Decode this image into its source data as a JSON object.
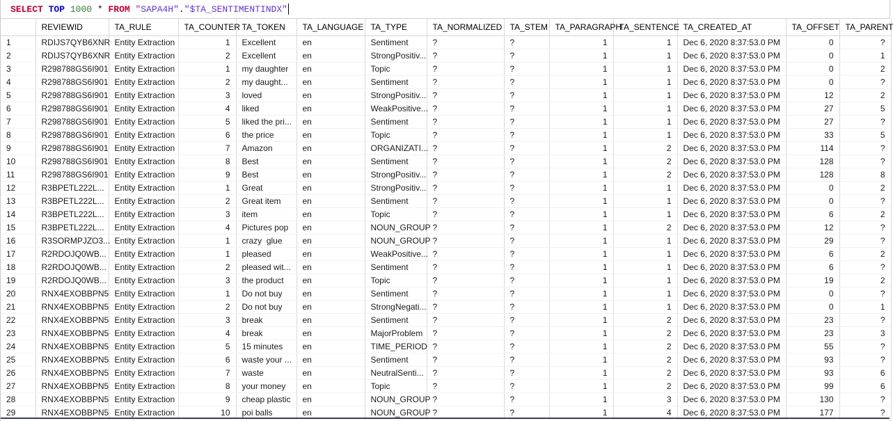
{
  "sql_editor": {
    "syntax_colors": {
      "keyword": "#bb0033",
      "keyword2": "#0000cc",
      "number": "#2e7d32",
      "string": "#6633cc",
      "plain": "#000000"
    },
    "query_tokens": [
      {
        "text": "SELECT",
        "type": "keyword"
      },
      {
        "text": " ",
        "type": "plain"
      },
      {
        "text": "TOP",
        "type": "keyword2"
      },
      {
        "text": " ",
        "type": "plain"
      },
      {
        "text": "1000",
        "type": "number"
      },
      {
        "text": " * ",
        "type": "plain"
      },
      {
        "text": "FROM",
        "type": "keyword"
      },
      {
        "text": " ",
        "type": "plain"
      },
      {
        "text": "\"SAPA4H\"",
        "type": "string"
      },
      {
        "text": ".",
        "type": "plain"
      },
      {
        "text": "\"$TA_SENTIMENTINDX\"",
        "type": "string"
      }
    ]
  },
  "grid": {
    "columns": [
      {
        "id": "rownum",
        "label": "",
        "width": 50,
        "align": "left"
      },
      {
        "id": "reviewid",
        "label": "REVIEWID",
        "width": 105,
        "align": "left"
      },
      {
        "id": "ta-rule",
        "label": "TA_RULE",
        "width": 100,
        "align": "left"
      },
      {
        "id": "ta-counter",
        "label": "TA_COUNTER",
        "width": 83,
        "align": "right"
      },
      {
        "id": "ta-token",
        "label": "TA_TOKEN",
        "width": 87,
        "align": "left"
      },
      {
        "id": "ta-language",
        "label": "TA_LANGUAGE",
        "width": 98,
        "align": "left"
      },
      {
        "id": "ta-type",
        "label": "TA_TYPE",
        "width": 89,
        "align": "left"
      },
      {
        "id": "ta-normalized",
        "label": "TA_NORMALIZED",
        "width": 111,
        "align": "left"
      },
      {
        "id": "ta-stem",
        "label": "TA_STEM",
        "width": 65,
        "align": "left"
      },
      {
        "id": "ta-paragraph",
        "label": "TA_PARAGRAPH",
        "width": 92,
        "align": "right"
      },
      {
        "id": "ta-sentence",
        "label": "TA_SENTENCE",
        "width": 92,
        "align": "right"
      },
      {
        "id": "ta-created-at",
        "label": "TA_CREATED_AT",
        "width": 156,
        "align": "left"
      },
      {
        "id": "ta-offset",
        "label": "TA_OFFSET",
        "width": 77,
        "align": "right"
      },
      {
        "id": "ta-parent",
        "label": "TA_PARENT",
        "width": 74,
        "align": "right"
      }
    ],
    "rows": [
      [
        "1",
        "RDIJS7QYB6XNR",
        "Entity Extraction",
        "1",
        "Excellent",
        "en",
        "Sentiment",
        "?",
        "?",
        "1",
        "1",
        "Dec 6, 2020 8:37:53.0 PM",
        "0",
        "?"
      ],
      [
        "2",
        "RDIJS7QYB6XNR",
        "Entity Extraction",
        "2",
        "Excellent",
        "en",
        "StrongPositiv...",
        "?",
        "?",
        "1",
        "1",
        "Dec 6, 2020 8:37:53.0 PM",
        "0",
        "1"
      ],
      [
        "3",
        "R298788GS6I901",
        "Entity Extraction",
        "1",
        "my daughter",
        "en",
        "Topic",
        "?",
        "?",
        "1",
        "1",
        "Dec 6, 2020 8:37:53.0 PM",
        "0",
        "2"
      ],
      [
        "4",
        "R298788GS6I901",
        "Entity Extraction",
        "2",
        "my daught...",
        "en",
        "Sentiment",
        "?",
        "?",
        "1",
        "1",
        "Dec 6, 2020 8:37:53.0 PM",
        "0",
        "?"
      ],
      [
        "5",
        "R298788GS6I901",
        "Entity Extraction",
        "3",
        "loved",
        "en",
        "StrongPositiv...",
        "?",
        "?",
        "1",
        "1",
        "Dec 6, 2020 8:37:53.0 PM",
        "12",
        "2"
      ],
      [
        "6",
        "R298788GS6I901",
        "Entity Extraction",
        "4",
        "liked",
        "en",
        "WeakPositive...",
        "?",
        "?",
        "1",
        "1",
        "Dec 6, 2020 8:37:53.0 PM",
        "27",
        "5"
      ],
      [
        "7",
        "R298788GS6I901",
        "Entity Extraction",
        "5",
        "liked the pri...",
        "en",
        "Sentiment",
        "?",
        "?",
        "1",
        "1",
        "Dec 6, 2020 8:37:53.0 PM",
        "27",
        "?"
      ],
      [
        "8",
        "R298788GS6I901",
        "Entity Extraction",
        "6",
        "the price",
        "en",
        "Topic",
        "?",
        "?",
        "1",
        "1",
        "Dec 6, 2020 8:37:53.0 PM",
        "33",
        "5"
      ],
      [
        "9",
        "R298788GS6I901",
        "Entity Extraction",
        "7",
        "Amazon",
        "en",
        "ORGANIZATI...",
        "?",
        "?",
        "1",
        "2",
        "Dec 6, 2020 8:37:53.0 PM",
        "114",
        "?"
      ],
      [
        "10",
        "R298788GS6I901",
        "Entity Extraction",
        "8",
        "Best",
        "en",
        "Sentiment",
        "?",
        "?",
        "1",
        "2",
        "Dec 6, 2020 8:37:53.0 PM",
        "128",
        "?"
      ],
      [
        "11",
        "R298788GS6I901",
        "Entity Extraction",
        "9",
        "Best",
        "en",
        "StrongPositiv...",
        "?",
        "?",
        "1",
        "2",
        "Dec 6, 2020 8:37:53.0 PM",
        "128",
        "8"
      ],
      [
        "12",
        "R3BPETL222L...",
        "Entity Extraction",
        "1",
        "Great",
        "en",
        "StrongPositiv...",
        "?",
        "?",
        "1",
        "1",
        "Dec 6, 2020 8:37:53.0 PM",
        "0",
        "2"
      ],
      [
        "13",
        "R3BPETL222L...",
        "Entity Extraction",
        "2",
        "Great item",
        "en",
        "Sentiment",
        "?",
        "?",
        "1",
        "1",
        "Dec 6, 2020 8:37:53.0 PM",
        "0",
        "?"
      ],
      [
        "14",
        "R3BPETL222L...",
        "Entity Extraction",
        "3",
        "item",
        "en",
        "Topic",
        "?",
        "?",
        "1",
        "1",
        "Dec 6, 2020 8:37:53.0 PM",
        "6",
        "2"
      ],
      [
        "15",
        "R3BPETL222L...",
        "Entity Extraction",
        "4",
        "Pictures pop",
        "en",
        "NOUN_GROUP",
        "?",
        "?",
        "1",
        "2",
        "Dec 6, 2020 8:37:53.0 PM",
        "12",
        "?"
      ],
      [
        "16",
        "R3SORMPJZO3...",
        "Entity Extraction",
        "1",
        "crazy  glue",
        "en",
        "NOUN_GROUP",
        "?",
        "?",
        "1",
        "1",
        "Dec 6, 2020 8:37:53.0 PM",
        "29",
        "?"
      ],
      [
        "17",
        "R2RDOJQ0WB...",
        "Entity Extraction",
        "1",
        "pleased",
        "en",
        "WeakPositive...",
        "?",
        "?",
        "1",
        "1",
        "Dec 6, 2020 8:37:53.0 PM",
        "6",
        "2"
      ],
      [
        "18",
        "R2RDOJQ0WB...",
        "Entity Extraction",
        "2",
        "pleased wit...",
        "en",
        "Sentiment",
        "?",
        "?",
        "1",
        "1",
        "Dec 6, 2020 8:37:53.0 PM",
        "6",
        "?"
      ],
      [
        "19",
        "R2RDOJQ0WB...",
        "Entity Extraction",
        "3",
        "the product",
        "en",
        "Topic",
        "?",
        "?",
        "1",
        "1",
        "Dec 6, 2020 8:37:53.0 PM",
        "19",
        "2"
      ],
      [
        "20",
        "RNX4EXOBBPN5",
        "Entity Extraction",
        "1",
        "Do not buy",
        "en",
        "Sentiment",
        "?",
        "?",
        "1",
        "1",
        "Dec 6, 2020 8:37:53.0 PM",
        "0",
        "?"
      ],
      [
        "21",
        "RNX4EXOBBPN5",
        "Entity Extraction",
        "2",
        "Do not buy",
        "en",
        "StrongNegati...",
        "?",
        "?",
        "1",
        "1",
        "Dec 6, 2020 8:37:53.0 PM",
        "0",
        "1"
      ],
      [
        "22",
        "RNX4EXOBBPN5",
        "Entity Extraction",
        "3",
        "break",
        "en",
        "Sentiment",
        "?",
        "?",
        "1",
        "2",
        "Dec 6, 2020 8:37:53.0 PM",
        "23",
        "?"
      ],
      [
        "23",
        "RNX4EXOBBPN5",
        "Entity Extraction",
        "4",
        "break",
        "en",
        "MajorProblem",
        "?",
        "?",
        "1",
        "2",
        "Dec 6, 2020 8:37:53.0 PM",
        "23",
        "3"
      ],
      [
        "24",
        "RNX4EXOBBPN5",
        "Entity Extraction",
        "5",
        "15 minutes",
        "en",
        "TIME_PERIOD",
        "?",
        "?",
        "1",
        "2",
        "Dec 6, 2020 8:37:53.0 PM",
        "55",
        "?"
      ],
      [
        "25",
        "RNX4EXOBBPN5",
        "Entity Extraction",
        "6",
        "waste your ...",
        "en",
        "Sentiment",
        "?",
        "?",
        "1",
        "2",
        "Dec 6, 2020 8:37:53.0 PM",
        "93",
        "?"
      ],
      [
        "26",
        "RNX4EXOBBPN5",
        "Entity Extraction",
        "7",
        "waste",
        "en",
        "NeutralSenti...",
        "?",
        "?",
        "1",
        "2",
        "Dec 6, 2020 8:37:53.0 PM",
        "93",
        "6"
      ],
      [
        "27",
        "RNX4EXOBBPN5",
        "Entity Extraction",
        "8",
        "your money",
        "en",
        "Topic",
        "?",
        "?",
        "1",
        "2",
        "Dec 6, 2020 8:37:53.0 PM",
        "99",
        "6"
      ],
      [
        "28",
        "RNX4EXOBBPN5",
        "Entity Extraction",
        "9",
        "cheap plastic",
        "en",
        "NOUN_GROUP",
        "?",
        "?",
        "1",
        "3",
        "Dec 6, 2020 8:37:53.0 PM",
        "130",
        "?"
      ],
      [
        "29",
        "RNX4EXOBBPN5",
        "Entity Extraction",
        "10",
        "poi balls",
        "en",
        "NOUN_GROUP",
        "?",
        "?",
        "1",
        "4",
        "Dec 6, 2020 8:37:53.0 PM",
        "177",
        "?"
      ]
    ]
  }
}
